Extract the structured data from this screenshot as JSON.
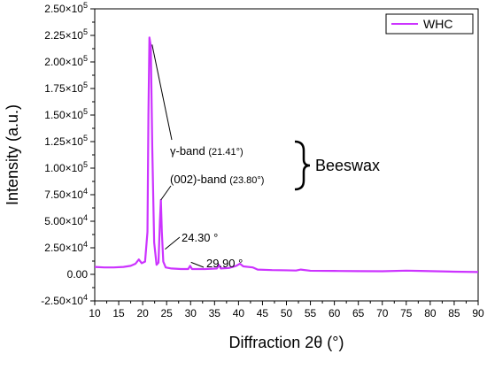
{
  "chart_data": {
    "type": "line",
    "xlabel": "Diffraction 2θ (°)",
    "ylabel": "Intensity (a.u.)",
    "xlim": [
      10,
      90
    ],
    "ylim": [
      -25000,
      250000
    ],
    "grid": false,
    "legend_placement": "top-right",
    "x_ticks": [
      10,
      15,
      20,
      25,
      30,
      35,
      40,
      45,
      50,
      55,
      60,
      65,
      70,
      75,
      80,
      85,
      90
    ],
    "y_ticks": [
      {
        "value": -25000,
        "mantissa": "-2.50×10",
        "exp": "4"
      },
      {
        "value": 0,
        "mantissa": "0.00",
        "exp": ""
      },
      {
        "value": 25000,
        "mantissa": "2.50×10",
        "exp": "4"
      },
      {
        "value": 50000,
        "mantissa": "5.00×10",
        "exp": "4"
      },
      {
        "value": 75000,
        "mantissa": "7.50×10",
        "exp": "4"
      },
      {
        "value": 100000,
        "mantissa": "1.00×10",
        "exp": "5"
      },
      {
        "value": 125000,
        "mantissa": "1.25×10",
        "exp": "5"
      },
      {
        "value": 150000,
        "mantissa": "1.50×10",
        "exp": "5"
      },
      {
        "value": 175000,
        "mantissa": "1.75×10",
        "exp": "5"
      },
      {
        "value": 200000,
        "mantissa": "2.00×10",
        "exp": "5"
      },
      {
        "value": 225000,
        "mantissa": "2.25×10",
        "exp": "5"
      },
      {
        "value": 250000,
        "mantissa": "2.50×10",
        "exp": "5"
      }
    ],
    "series": [
      {
        "name": "WHC",
        "color": "#cc33ff",
        "points": [
          [
            10,
            7000
          ],
          [
            12,
            6500
          ],
          [
            14,
            6500
          ],
          [
            16,
            7000
          ],
          [
            17.5,
            8000
          ],
          [
            18.5,
            10000
          ],
          [
            19.2,
            14000
          ],
          [
            19.8,
            10500
          ],
          [
            20.5,
            12000
          ],
          [
            21.0,
            40000
          ],
          [
            21.2,
            150000
          ],
          [
            21.41,
            223000
          ],
          [
            21.7,
            215000
          ],
          [
            22.0,
            120000
          ],
          [
            22.4,
            30000
          ],
          [
            22.9,
            9000
          ],
          [
            23.3,
            11000
          ],
          [
            23.6,
            50000
          ],
          [
            23.8,
            70000
          ],
          [
            24.0,
            40000
          ],
          [
            24.3,
            12000
          ],
          [
            24.8,
            6500
          ],
          [
            26,
            5500
          ],
          [
            28,
            5000
          ],
          [
            29.5,
            5000
          ],
          [
            29.9,
            8000
          ],
          [
            30.3,
            5000
          ],
          [
            33,
            5000
          ],
          [
            35.5,
            5500
          ],
          [
            35.9,
            9000
          ],
          [
            36.3,
            5500
          ],
          [
            38,
            6000
          ],
          [
            39.5,
            8000
          ],
          [
            40.3,
            10000
          ],
          [
            41,
            7500
          ],
          [
            43,
            6500
          ],
          [
            44,
            4500
          ],
          [
            47,
            4000
          ],
          [
            50,
            3800
          ],
          [
            52,
            3600
          ],
          [
            53,
            4500
          ],
          [
            55,
            3400
          ],
          [
            60,
            3200
          ],
          [
            65,
            3000
          ],
          [
            70,
            2900
          ],
          [
            75,
            3500
          ],
          [
            78,
            3200
          ],
          [
            80,
            3000
          ],
          [
            85,
            2500
          ],
          [
            90,
            2200
          ]
        ]
      }
    ],
    "annotations": [
      {
        "id": "gamma",
        "label": "γ-band",
        "value": "(21.41°)",
        "x": 21.41,
        "y": 223000
      },
      {
        "id": "band002",
        "label": "(002)-band",
        "value": "(23.80°)",
        "x": 23.8,
        "y": 70000
      },
      {
        "id": "p2430",
        "label": "24.30 °",
        "x": 24.3,
        "y": 12000
      },
      {
        "id": "p2990",
        "label": "29.90 °",
        "x": 29.9,
        "y": 8000
      }
    ],
    "group_label": "Beeswax"
  }
}
